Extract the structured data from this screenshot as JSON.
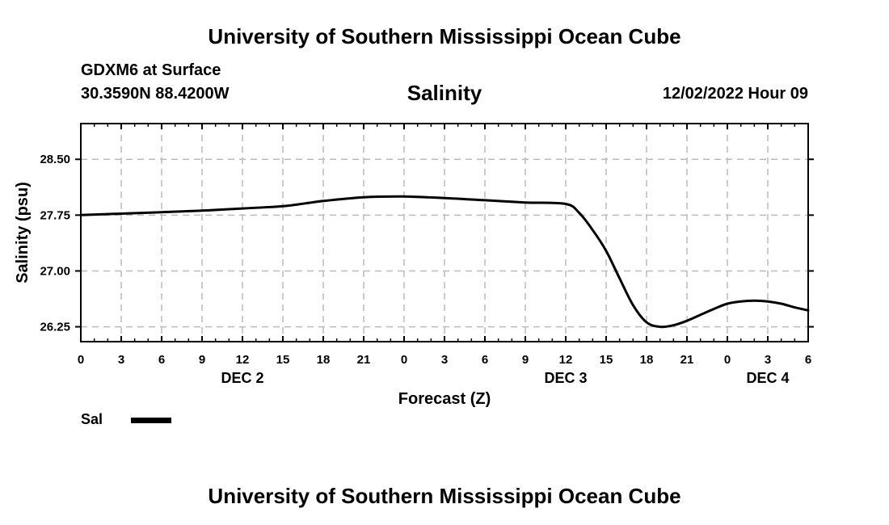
{
  "header": {
    "title": "University of Southern Mississippi Ocean Cube",
    "station": "GDXM6 at Surface",
    "coordinates": "30.3590N  88.4200W",
    "chart_title": "Salinity",
    "datetime": "12/02/2022 Hour 09"
  },
  "footer": {
    "title": "University of Southern Mississippi Ocean Cube"
  },
  "legend": {
    "label": "Sal",
    "color": "#000000"
  },
  "chart_data": {
    "type": "line",
    "title": "Salinity",
    "xlabel": "Forecast (Z)",
    "ylabel": "Salinity (psu)",
    "xlim": [
      0,
      54
    ],
    "ylim": [
      26.05,
      28.98
    ],
    "x_ticks": [
      0,
      3,
      6,
      9,
      12,
      15,
      18,
      21,
      24,
      27,
      30,
      33,
      36,
      39,
      42,
      45,
      48,
      51,
      54
    ],
    "x_tick_labels": [
      "0",
      "3",
      "6",
      "9",
      "12",
      "15",
      "18",
      "21",
      "0",
      "3",
      "6",
      "9",
      "12",
      "15",
      "18",
      "21",
      "0",
      "3",
      "6"
    ],
    "y_ticks": [
      26.25,
      27.0,
      27.75,
      28.5
    ],
    "y_tick_labels": [
      "26.25",
      "27.00",
      "27.75",
      "28.50"
    ],
    "date_labels": [
      {
        "x": 12,
        "label": "DEC 2"
      },
      {
        "x": 36,
        "label": "DEC 3"
      },
      {
        "x": 51,
        "label": "DEC 4"
      }
    ],
    "grid": true,
    "series": [
      {
        "name": "Sal",
        "color": "#000000",
        "x": [
          0,
          3,
          6,
          9,
          12,
          15,
          18,
          21,
          24,
          27,
          30,
          33,
          36,
          37,
          38,
          39,
          40,
          41,
          42,
          43,
          44,
          45,
          46,
          47,
          48,
          49,
          50,
          51,
          52,
          53,
          54
        ],
        "y": [
          27.75,
          27.77,
          27.79,
          27.81,
          27.84,
          27.87,
          27.94,
          27.99,
          28.0,
          27.98,
          27.95,
          27.92,
          27.9,
          27.78,
          27.55,
          27.27,
          26.9,
          26.54,
          26.31,
          26.25,
          26.27,
          26.33,
          26.41,
          26.49,
          26.56,
          26.59,
          26.6,
          26.59,
          26.56,
          26.51,
          26.47
        ]
      }
    ]
  }
}
